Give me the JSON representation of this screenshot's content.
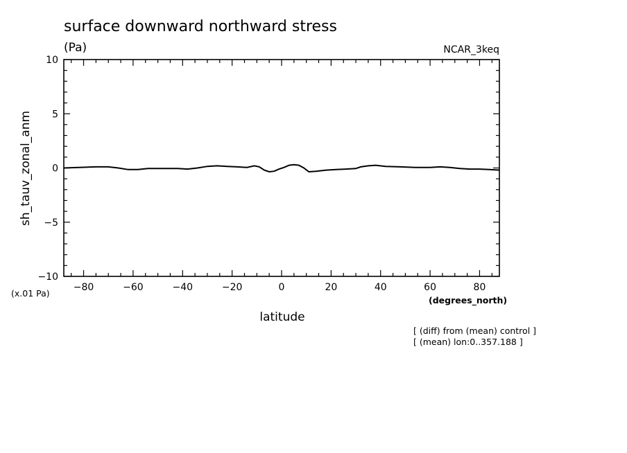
{
  "chart_data": {
    "type": "line",
    "title": "surface downward northward stress",
    "units_label": "(Pa)",
    "model_label": "NCAR_3keq",
    "ylabel": "sh_tauv_zonal_anm",
    "y_scale_note": "(x.01 Pa)",
    "xlabel": "latitude",
    "x_units_label": "(degrees_north)",
    "notes": [
      "[ (diff) from (mean) control ]",
      "[ (mean) lon:0..357.188 ]"
    ],
    "xlim": [
      -88,
      88
    ],
    "ylim": [
      -10,
      10
    ],
    "x_ticks": [
      -80,
      -60,
      -40,
      -20,
      0,
      20,
      40,
      60,
      80
    ],
    "x_tick_labels": [
      "−80",
      "−60",
      "−40",
      "−20",
      "0",
      "20",
      "40",
      "60",
      "80"
    ],
    "y_ticks": [
      -10,
      -5,
      0,
      5,
      10
    ],
    "y_tick_labels": [
      "−10",
      "−5",
      "0",
      "5",
      "10"
    ],
    "grid": false,
    "series": [
      {
        "x": [
          -88,
          -82,
          -75,
          -70,
          -66,
          -62,
          -58,
          -54,
          -48,
          -42,
          -38,
          -34,
          -30,
          -26,
          -22,
          -18,
          -14,
          -11,
          -9,
          -7,
          -5,
          -3,
          -1,
          1,
          3,
          5,
          7,
          9,
          11,
          14,
          18,
          22,
          26,
          30,
          32,
          35,
          38,
          42,
          48,
          54,
          60,
          64,
          68,
          72,
          76,
          80,
          84,
          88
        ],
        "y": [
          0.0,
          0.05,
          0.1,
          0.1,
          0.0,
          -0.15,
          -0.15,
          -0.05,
          -0.05,
          -0.05,
          -0.1,
          0.0,
          0.15,
          0.2,
          0.15,
          0.1,
          0.05,
          0.2,
          0.1,
          -0.2,
          -0.35,
          -0.3,
          -0.1,
          0.05,
          0.25,
          0.3,
          0.25,
          0.0,
          -0.35,
          -0.3,
          -0.2,
          -0.15,
          -0.1,
          -0.05,
          0.1,
          0.2,
          0.25,
          0.15,
          0.1,
          0.05,
          0.05,
          0.1,
          0.05,
          -0.05,
          -0.1,
          -0.1,
          -0.15,
          -0.2
        ]
      }
    ]
  }
}
